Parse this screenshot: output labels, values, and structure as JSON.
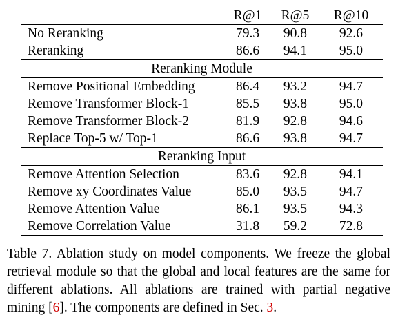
{
  "table": {
    "columns": [
      "",
      "R@1",
      "R@5",
      "R@10"
    ],
    "top_rows": [
      {
        "name": "No Reranking",
        "r1": "79.3",
        "r5": "90.8",
        "r10": "92.6",
        "bold": false
      },
      {
        "name": "Reranking",
        "r1": "86.6",
        "r5": "94.1",
        "r10": "95.0",
        "bold": true
      }
    ],
    "sections": [
      {
        "title": "Reranking Module",
        "rows": [
          {
            "name": "Remove Positional Embedding",
            "r1": "86.4",
            "r5": "93.2",
            "r10": "94.7"
          },
          {
            "name": "Remove Transformer Block-1",
            "r1": "85.5",
            "r5": "93.8",
            "r10": "95.0"
          },
          {
            "name": "Remove Transformer Block-2",
            "r1": "81.9",
            "r5": "92.8",
            "r10": "94.6"
          },
          {
            "name": "Replace Top-5 w/ Top-1",
            "r1": "86.6",
            "r5": "93.8",
            "r10": "94.7"
          }
        ]
      },
      {
        "title": "Reranking Input",
        "rows": [
          {
            "name": "Remove Attention Selection",
            "r1": "83.6",
            "r5": "92.8",
            "r10": "94.1"
          },
          {
            "name": "Remove xy Coordinates Value",
            "r1": "85.0",
            "r5": "93.5",
            "r10": "94.7"
          },
          {
            "name": "Remove Attention Value",
            "r1": "86.1",
            "r5": "93.5",
            "r10": "94.3"
          },
          {
            "name": "Remove Correlation Value",
            "r1": "31.8",
            "r5": "59.2",
            "r10": "72.8"
          }
        ]
      }
    ]
  },
  "caption": {
    "part1": "Table 7.  Ablation study on model components.  We freeze the global retrieval module so that the global and local features are the same for different ablations.  All ablations are trained with partial negative mining [",
    "ref1": "6",
    "part2": "]. The components are defined in Sec. ",
    "ref2": "3",
    "part3": "."
  }
}
